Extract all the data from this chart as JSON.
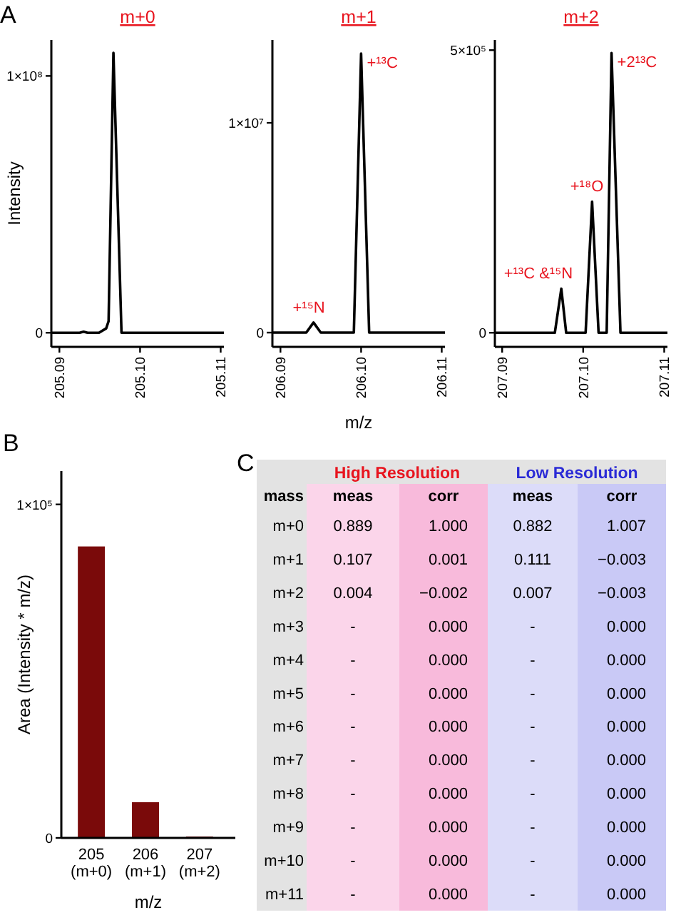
{
  "chart_data": [
    {
      "type": "line",
      "title": "m+0",
      "ylabel": "Intensity",
      "annotations": [
        "A"
      ],
      "xlim": [
        205.089,
        205.1104
      ],
      "xticks": [
        205.09,
        {
          "value": 205.1,
          "label": "205.10"
        },
        205.11
      ],
      "ylim": [
        -5500000,
        114000000
      ],
      "yticks": [
        {
          "value": 0,
          "label": "0"
        },
        {
          "value": 100000000,
          "label": "1×10⁸"
        }
      ],
      "series": [
        {
          "color": "#000000",
          "x": [
            205.089,
            205.0925,
            205.093,
            205.0935,
            205.0949,
            205.0958,
            205.0961,
            205.0967,
            205.0977,
            205.1104
          ],
          "values": [
            0,
            0,
            400000,
            0,
            0,
            1700000,
            4500000,
            109000000,
            0,
            0
          ]
        }
      ]
    },
    {
      "type": "line",
      "title": "m+1",
      "xlabel": "m/z",
      "annotations": [
        {
          "text": "+¹⁵N",
          "x": 206.0941,
          "y": 480000
        },
        {
          "text": "+¹³C",
          "x": 206.1,
          "y": 13300000
        }
      ],
      "xlim": [
        206.089,
        206.1104
      ],
      "xticks": [
        206.09,
        {
          "value": 206.1,
          "label": "206.10"
        },
        206.11
      ],
      "ylim": [
        -680000,
        13950000
      ],
      "yticks": [
        {
          "value": 0,
          "label": "0"
        },
        {
          "value": 10000000,
          "label": "1×10⁷"
        }
      ],
      "series": [
        {
          "color": "#000000",
          "x": [
            206.089,
            206.0932,
            206.0941,
            206.095,
            206.0991,
            206.1,
            206.101,
            206.1104
          ],
          "values": [
            0,
            0,
            480000,
            0,
            0,
            13300000,
            0,
            0
          ]
        }
      ]
    },
    {
      "type": "line",
      "title": "m+2",
      "annotations": [
        {
          "text": "+¹³C &¹⁵N",
          "x": 207.0973,
          "y": 78000
        },
        {
          "text": "+¹⁸O",
          "x": 207.1011,
          "y": 232000
        },
        {
          "text": "+2¹³C",
          "x": 207.1035,
          "y": 495000
        }
      ],
      "xlim": [
        207.0891,
        207.1104
      ],
      "xticks": [
        207.09,
        {
          "value": 207.1,
          "label": "207.10"
        },
        207.11
      ],
      "ylim": [
        -25000,
        518000
      ],
      "yticks": [
        {
          "value": 0,
          "label": "0"
        },
        {
          "value": 500000,
          "label": "5×10⁵"
        }
      ],
      "series": [
        {
          "color": "#000000",
          "x": [
            207.0891,
            207.0965,
            207.0973,
            207.0979,
            207.1003,
            207.1011,
            207.1019,
            207.1029,
            207.1035,
            207.1046,
            207.1104
          ],
          "values": [
            0,
            0,
            78000,
            0,
            0,
            232000,
            0,
            0,
            495000,
            0,
            0
          ]
        }
      ]
    },
    {
      "type": "bar",
      "xlabel": "m/z",
      "ylabel": "Area (Intensity * m/z)",
      "annotations": [
        "B"
      ],
      "categories": [
        "205\n(m+0)",
        "206\n(m+1)",
        "207\n(m+2)"
      ],
      "values": [
        87400,
        10700,
        400
      ],
      "color": "#7a0a0a",
      "ylim": [
        0,
        110000
      ],
      "yticks": [
        {
          "value": 0,
          "label": "0"
        },
        {
          "value": 100000,
          "label": "1×10⁵"
        }
      ]
    },
    {
      "type": "other",
      "annotations": [
        "C",
        "High Resolution",
        "Low Resolution"
      ],
      "categories": [
        "mass",
        "meas",
        "corr",
        "meas",
        "corr"
      ],
      "colors": [
        "#e3e3e3",
        "#fbd5ea",
        "#f8badb",
        "#dcdcf9",
        "#c9c9f6",
        "#e8141e",
        "#2b2bd6"
      ],
      "cell_labels": [
        [
          "m+0",
          "0.889",
          "1.000",
          "0.882",
          "1.007"
        ],
        [
          "m+1",
          "0.107",
          "0.001",
          "0.111",
          "−0.003"
        ],
        [
          "m+2",
          "0.004",
          "−0.002",
          "0.007",
          "−0.003"
        ],
        [
          "m+3",
          "-",
          "0.000",
          "-",
          "0.000"
        ],
        [
          "m+4",
          "-",
          "0.000",
          "-",
          "0.000"
        ],
        [
          "m+5",
          "-",
          "0.000",
          "-",
          "0.000"
        ],
        [
          "m+6",
          "-",
          "0.000",
          "-",
          "0.000"
        ],
        [
          "m+7",
          "-",
          "0.000",
          "-",
          "0.000"
        ],
        [
          "m+8",
          "-",
          "0.000",
          "-",
          "0.000"
        ],
        [
          "m+9",
          "-",
          "0.000",
          "-",
          "0.000"
        ],
        [
          "m+10",
          "-",
          "0.000",
          "-",
          "0.000"
        ],
        [
          "m+11",
          "-",
          "0.000",
          "-",
          "0.000"
        ]
      ]
    }
  ]
}
